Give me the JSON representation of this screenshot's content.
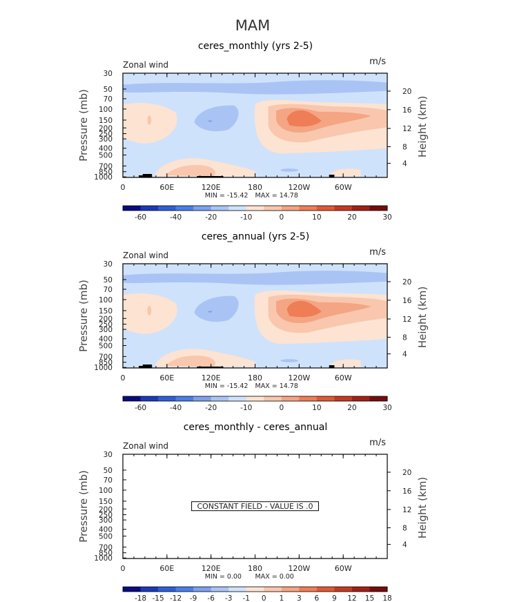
{
  "figure_title": "MAM",
  "chart_data": [
    {
      "type": "contour",
      "title": "ceres_monthly (yrs 2-5)",
      "left_label": "Zonal wind",
      "units": "m/s",
      "ylabel": "Pressure  (mb)",
      "ylabel_right": "Height  (km)",
      "x_ticks": [
        "0",
        "60E",
        "120E",
        "180",
        "120W",
        "60W"
      ],
      "y_ticks": [
        "30",
        "50",
        "70",
        "100",
        "150",
        "200",
        "250",
        "300",
        "400",
        "500",
        "700",
        "850",
        "1000"
      ],
      "height_ticks": [
        "20",
        "16",
        "12",
        "8",
        "4"
      ],
      "min_label": "MIN = -15.42",
      "max_label": "MAX =  14.78",
      "min": -15.42,
      "max": 14.78,
      "colorbar_labels": [
        "-60",
        "-40",
        "-20",
        "-10",
        "0",
        "10",
        "20",
        "30"
      ],
      "constant_text": ""
    },
    {
      "type": "contour",
      "title": "ceres_annual (yrs 2-5)",
      "left_label": "Zonal wind",
      "units": "m/s",
      "ylabel": "Pressure  (mb)",
      "ylabel_right": "Height  (km)",
      "x_ticks": [
        "0",
        "60E",
        "120E",
        "180",
        "120W",
        "60W"
      ],
      "y_ticks": [
        "30",
        "50",
        "70",
        "100",
        "150",
        "200",
        "250",
        "300",
        "400",
        "500",
        "700",
        "850",
        "1000"
      ],
      "height_ticks": [
        "20",
        "16",
        "12",
        "8",
        "4"
      ],
      "min_label": "MIN = -15.42",
      "max_label": "MAX =  14.78",
      "min": -15.42,
      "max": 14.78,
      "colorbar_labels": [
        "-60",
        "-40",
        "-20",
        "-10",
        "0",
        "10",
        "20",
        "30"
      ],
      "constant_text": ""
    },
    {
      "type": "contour",
      "title": "ceres_monthly - ceres_annual",
      "left_label": "Zonal wind",
      "units": "m/s",
      "ylabel": "Pressure  (mb)",
      "ylabel_right": "Height  (km)",
      "x_ticks": [
        "0",
        "60E",
        "120E",
        "180",
        "120W",
        "60W"
      ],
      "y_ticks": [
        "30",
        "50",
        "70",
        "100",
        "150",
        "200",
        "250",
        "300",
        "400",
        "500",
        "700",
        "850",
        "1000"
      ],
      "height_ticks": [
        "20",
        "16",
        "12",
        "8",
        "4"
      ],
      "min_label": "MIN =    0.00",
      "max_label": "MAX =    0.00",
      "min": 0.0,
      "max": 0.0,
      "colorbar_labels": [
        "-18",
        "-15",
        "-12",
        "-9",
        "-6",
        "-3",
        "-1",
        "0",
        "1",
        "3",
        "6",
        "9",
        "12",
        "15",
        "18"
      ],
      "constant_text": "CONSTANT FIELD - VALUE IS .0"
    }
  ],
  "palette": [
    "#0a0a80",
    "#1a3ab8",
    "#2e5fd8",
    "#4a7ee8",
    "#7ea0ee",
    "#a9c4f4",
    "#cfe2fb",
    "#fde3d2",
    "#f9c7ad",
    "#f4a583",
    "#ef7d56",
    "#e05a33",
    "#c63a22",
    "#a32015",
    "#760c0c"
  ]
}
